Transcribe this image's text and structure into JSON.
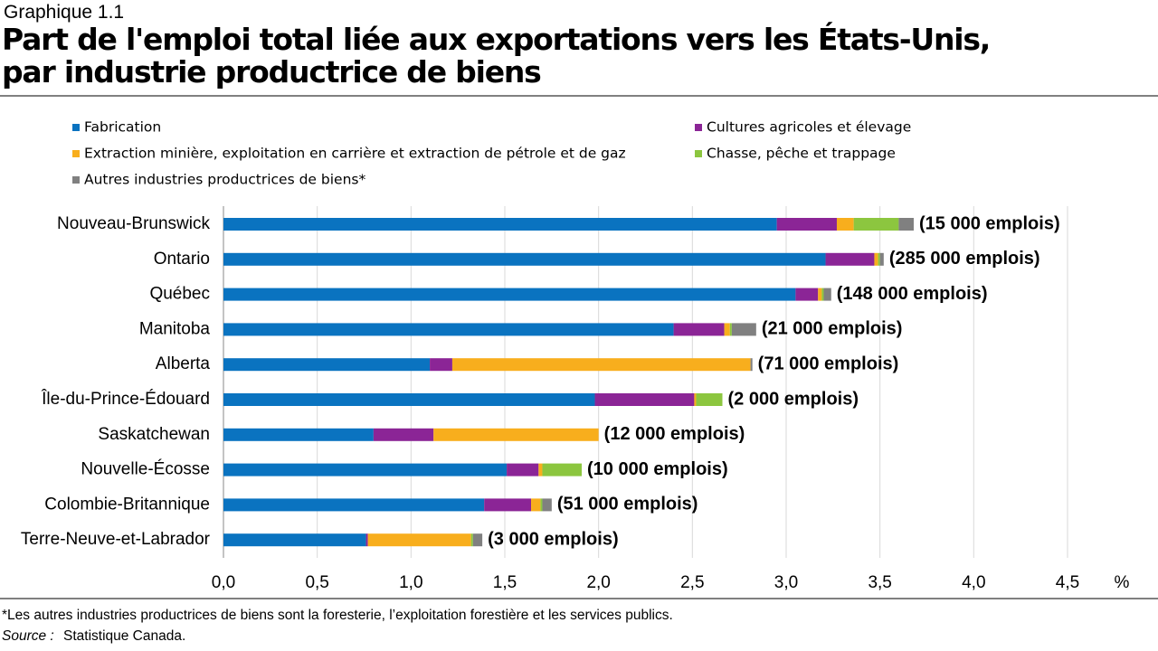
{
  "chart_data": {
    "type": "stacked_barh",
    "kicker": "Graphique 1.1",
    "title": "Part de l'emploi total liée aux exportations vers les États-Unis, par industrie productrice de biens",
    "categories": [
      "Nouveau-Brunswick",
      "Ontario",
      "Québec",
      "Manitoba",
      "Alberta",
      "Île-du-Prince-Édouard",
      "Saskatchewan",
      "Nouvelle-Écosse",
      "Colombie-Britannique",
      "Terre-Neuve-et-Labrador"
    ],
    "series": [
      {
        "name": "Fabrication",
        "color": "#0a73c0",
        "values": [
          2.95,
          3.21,
          3.05,
          2.4,
          1.1,
          1.98,
          0.8,
          1.51,
          1.39,
          0.76
        ]
      },
      {
        "name": "Cultures agricoles et élevage",
        "color": "#8b2596",
        "values": [
          0.32,
          0.26,
          0.12,
          0.27,
          0.12,
          0.53,
          0.32,
          0.17,
          0.25,
          0.01
        ]
      },
      {
        "name": "Extraction minière, exploitation en carrière et extraction de pétrole et de gaz",
        "color": "#f8ae1d",
        "values": [
          0.09,
          0.02,
          0.02,
          0.03,
          1.59,
          0.01,
          0.88,
          0.02,
          0.05,
          0.55
        ]
      },
      {
        "name": "Chasse, pêche et trappage",
        "color": "#8cc63f",
        "values": [
          0.24,
          0.01,
          0.01,
          0.01,
          0,
          0.14,
          0,
          0.21,
          0.01,
          0.01
        ]
      },
      {
        "name": "Autres industries productrices de biens*",
        "color": "#808080",
        "values": [
          0.08,
          0.02,
          0.04,
          0.13,
          0.01,
          0,
          0,
          0,
          0.05,
          0.05
        ]
      }
    ],
    "bar_labels": [
      "(15 000 emplois)",
      "(285 000 emplois)",
      "(148 000 emplois)",
      "(21 000 emplois)",
      "(71 000 emplois)",
      "(2 000 emplois)",
      "(12 000 emplois)",
      "(10 000 emplois)",
      "(51 000 emplois)",
      "(3 000 emplois)"
    ],
    "xlim": [
      0,
      4.5
    ],
    "xticks": [
      {
        "value": 0,
        "label": "0,0"
      },
      {
        "value": 0.5,
        "label": "0,5"
      },
      {
        "value": 1,
        "label": "1,0"
      },
      {
        "value": 1.5,
        "label": "1,5"
      },
      {
        "value": 2,
        "label": "2,0"
      },
      {
        "value": 2.5,
        "label": "2,5"
      },
      {
        "value": 3,
        "label": "3,0"
      },
      {
        "value": 3.5,
        "label": "3,5"
      },
      {
        "value": 4,
        "label": "4,0"
      },
      {
        "value": 4.5,
        "label": "4,5"
      }
    ],
    "x_label": "%",
    "grid": true,
    "footnote": "*Les autres industries productrices de biens sont la foresterie, l’exploitation forestière et les services publics.",
    "source_label": "Source :",
    "source": "Statistique Canada."
  }
}
